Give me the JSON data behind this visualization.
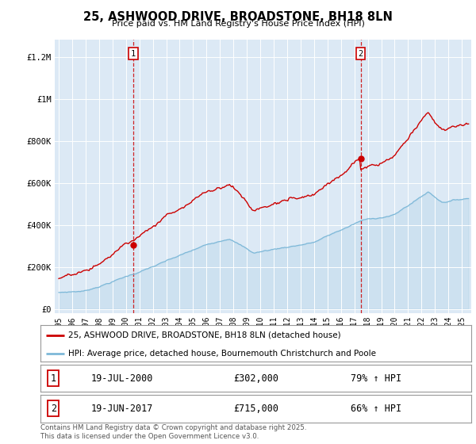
{
  "title": "25, ASHWOOD DRIVE, BROADSTONE, BH18 8LN",
  "subtitle": "Price paid vs. HM Land Registry's House Price Index (HPI)",
  "background_color": "#dce9f5",
  "fig_bg_color": "#ffffff",
  "red_color": "#cc0000",
  "blue_color": "#7db8d8",
  "sale1_date_num": 2000.54,
  "sale1_price": 302000,
  "sale1_label": "19-JUL-2000",
  "sale1_pct": "79% ↑ HPI",
  "sale2_date_num": 2017.47,
  "sale2_price": 715000,
  "sale2_label": "19-JUN-2017",
  "sale2_pct": "66% ↑ HPI",
  "ylim_max": 1280000,
  "ylim_min": -20000,
  "xlim_min": 1994.7,
  "xlim_max": 2025.7,
  "yticks": [
    0,
    200000,
    400000,
    600000,
    800000,
    1000000,
    1200000
  ],
  "ytick_labels": [
    "£0",
    "£200K",
    "£400K",
    "£600K",
    "£800K",
    "£1M",
    "£1.2M"
  ],
  "xticks": [
    1995,
    1996,
    1997,
    1998,
    1999,
    2000,
    2001,
    2002,
    2003,
    2004,
    2005,
    2006,
    2007,
    2008,
    2009,
    2010,
    2011,
    2012,
    2013,
    2014,
    2015,
    2016,
    2017,
    2018,
    2019,
    2020,
    2021,
    2022,
    2023,
    2024,
    2025
  ],
  "legend_red_label": "25, ASHWOOD DRIVE, BROADSTONE, BH18 8LN (detached house)",
  "legend_blue_label": "HPI: Average price, detached house, Bournemouth Christchurch and Poole",
  "footer": "Contains HM Land Registry data © Crown copyright and database right 2025.\nThis data is licensed under the Open Government Licence v3.0.",
  "sale1_price_label": "£302,000",
  "sale2_price_label": "£715,000"
}
